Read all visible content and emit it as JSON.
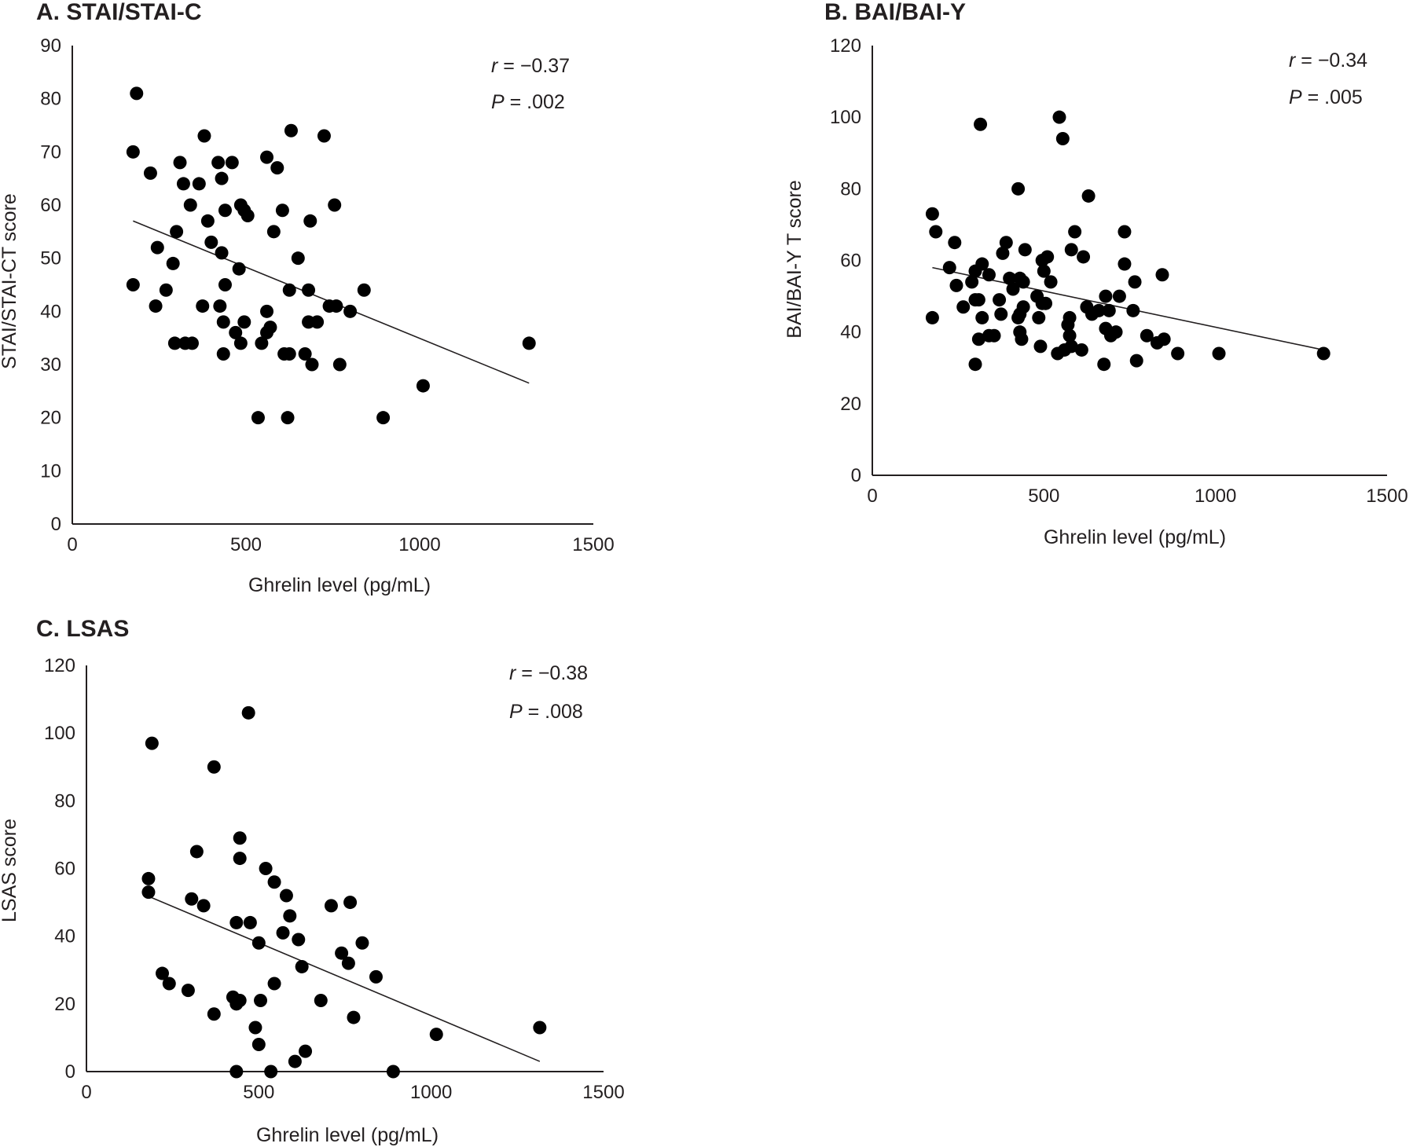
{
  "chart_data": [
    {
      "type": "scatter",
      "title": "A. STAI/STAI-C",
      "xlabel": "Ghrelin level (pg/mL)",
      "ylabel": "STAI/STAI-CT score",
      "xlim": [
        0,
        1500
      ],
      "ylim": [
        0,
        90
      ],
      "xticks": [
        "0",
        "500",
        "1000",
        "1500"
      ],
      "yticks": [
        "0",
        "10",
        "20",
        "30",
        "40",
        "50",
        "60",
        "70",
        "80",
        "90"
      ],
      "stats": {
        "r_symbol": "r",
        "r_value": " = −0.37",
        "p_symbol": "P",
        "p_value": " = .002"
      },
      "trendline": {
        "x": [
          175,
          1315
        ],
        "y": [
          57,
          26.5
        ]
      },
      "points": [
        [
          185,
          81
        ],
        [
          175,
          70
        ],
        [
          225,
          66
        ],
        [
          310,
          68
        ],
        [
          320,
          64
        ],
        [
          340,
          60
        ],
        [
          365,
          64
        ],
        [
          380,
          73
        ],
        [
          390,
          57
        ],
        [
          400,
          53
        ],
        [
          420,
          68
        ],
        [
          430,
          65
        ],
        [
          440,
          59
        ],
        [
          460,
          68
        ],
        [
          485,
          60
        ],
        [
          495,
          59
        ],
        [
          505,
          58
        ],
        [
          560,
          69
        ],
        [
          590,
          67
        ],
        [
          630,
          74
        ],
        [
          725,
          73
        ],
        [
          605,
          59
        ],
        [
          580,
          55
        ],
        [
          685,
          57
        ],
        [
          755,
          60
        ],
        [
          175,
          45
        ],
        [
          245,
          52
        ],
        [
          290,
          49
        ],
        [
          300,
          55
        ],
        [
          270,
          44
        ],
        [
          240,
          41
        ],
        [
          375,
          41
        ],
        [
          430,
          51
        ],
        [
          440,
          45
        ],
        [
          480,
          48
        ],
        [
          425,
          41
        ],
        [
          435,
          38
        ],
        [
          470,
          36
        ],
        [
          495,
          38
        ],
        [
          560,
          40
        ],
        [
          570,
          37
        ],
        [
          560,
          36
        ],
        [
          625,
          44
        ],
        [
          650,
          50
        ],
        [
          680,
          44
        ],
        [
          740,
          41
        ],
        [
          760,
          41
        ],
        [
          800,
          40
        ],
        [
          840,
          44
        ],
        [
          680,
          38
        ],
        [
          705,
          38
        ],
        [
          295,
          34
        ],
        [
          325,
          34
        ],
        [
          345,
          34
        ],
        [
          435,
          32
        ],
        [
          485,
          34
        ],
        [
          545,
          34
        ],
        [
          610,
          32
        ],
        [
          625,
          32
        ],
        [
          670,
          32
        ],
        [
          690,
          30
        ],
        [
          770,
          30
        ],
        [
          535,
          20
        ],
        [
          620,
          20
        ],
        [
          895,
          20
        ],
        [
          1010,
          26
        ],
        [
          1315,
          34
        ]
      ]
    },
    {
      "type": "scatter",
      "title": "B. BAI/BAI-Y",
      "xlabel": "Ghrelin level (pg/mL)",
      "ylabel": "BAI/BAI-Y T score",
      "xlim": [
        0,
        1500
      ],
      "ylim": [
        0,
        120
      ],
      "xticks": [
        "0",
        "500",
        "1000",
        "1500"
      ],
      "yticks": [
        "0",
        "20",
        "40",
        "60",
        "80",
        "100",
        "120"
      ],
      "stats": {
        "r_symbol": "r",
        "r_value": " = −0.34",
        "p_symbol": "P",
        "p_value": " = .005"
      },
      "trendline": {
        "x": [
          175,
          1315
        ],
        "y": [
          58,
          35
        ]
      },
      "points": [
        [
          315,
          98
        ],
        [
          545,
          100
        ],
        [
          555,
          94
        ],
        [
          425,
          80
        ],
        [
          630,
          78
        ],
        [
          175,
          73
        ],
        [
          185,
          68
        ],
        [
          240,
          65
        ],
        [
          590,
          68
        ],
        [
          735,
          68
        ],
        [
          225,
          58
        ],
        [
          245,
          53
        ],
        [
          300,
          57
        ],
        [
          290,
          54
        ],
        [
          320,
          59
        ],
        [
          340,
          56
        ],
        [
          380,
          62
        ],
        [
          390,
          65
        ],
        [
          445,
          63
        ],
        [
          400,
          55
        ],
        [
          430,
          55
        ],
        [
          410,
          52
        ],
        [
          440,
          54
        ],
        [
          480,
          50
        ],
        [
          495,
          60
        ],
        [
          510,
          61
        ],
        [
          500,
          57
        ],
        [
          520,
          54
        ],
        [
          580,
          63
        ],
        [
          615,
          61
        ],
        [
          735,
          59
        ],
        [
          765,
          54
        ],
        [
          845,
          56
        ],
        [
          175,
          44
        ],
        [
          265,
          47
        ],
        [
          300,
          49
        ],
        [
          310,
          49
        ],
        [
          320,
          44
        ],
        [
          370,
          49
        ],
        [
          375,
          45
        ],
        [
          425,
          44
        ],
        [
          440,
          47
        ],
        [
          430,
          45
        ],
        [
          485,
          44
        ],
        [
          495,
          48
        ],
        [
          505,
          48
        ],
        [
          570,
          42
        ],
        [
          575,
          44
        ],
        [
          625,
          47
        ],
        [
          640,
          45
        ],
        [
          660,
          46
        ],
        [
          680,
          50
        ],
        [
          690,
          46
        ],
        [
          720,
          50
        ],
        [
          760,
          46
        ],
        [
          310,
          38
        ],
        [
          340,
          39
        ],
        [
          355,
          39
        ],
        [
          430,
          40
        ],
        [
          435,
          38
        ],
        [
          490,
          36
        ],
        [
          540,
          34
        ],
        [
          560,
          35
        ],
        [
          575,
          39
        ],
        [
          580,
          36
        ],
        [
          610,
          35
        ],
        [
          680,
          41
        ],
        [
          695,
          39
        ],
        [
          710,
          40
        ],
        [
          300,
          31
        ],
        [
          675,
          31
        ],
        [
          770,
          32
        ],
        [
          800,
          39
        ],
        [
          830,
          37
        ],
        [
          850,
          38
        ],
        [
          890,
          34
        ],
        [
          1010,
          34
        ],
        [
          1315,
          34
        ]
      ]
    },
    {
      "type": "scatter",
      "title": "C. LSAS",
      "xlabel": "Ghrelin level (pg/mL)",
      "ylabel": "LSAS score",
      "xlim": [
        0,
        1500
      ],
      "ylim": [
        0,
        120
      ],
      "xticks": [
        "0",
        "500",
        "1000",
        "1500"
      ],
      "yticks": [
        "0",
        "20",
        "40",
        "60",
        "80",
        "100",
        "120"
      ],
      "stats": {
        "r_symbol": "r",
        "r_value": " = −0.38",
        "p_symbol": "P",
        "p_value": " = .008"
      },
      "trendline": {
        "x": [
          175,
          1315
        ],
        "y": [
          52,
          3
        ]
      },
      "points": [
        [
          190,
          97
        ],
        [
          470,
          106
        ],
        [
          370,
          90
        ],
        [
          445,
          69
        ],
        [
          320,
          65
        ],
        [
          445,
          63
        ],
        [
          520,
          60
        ],
        [
          180,
          57
        ],
        [
          545,
          56
        ],
        [
          580,
          52
        ],
        [
          180,
          53
        ],
        [
          305,
          51
        ],
        [
          340,
          49
        ],
        [
          590,
          46
        ],
        [
          710,
          49
        ],
        [
          765,
          50
        ],
        [
          435,
          44
        ],
        [
          475,
          44
        ],
        [
          500,
          38
        ],
        [
          570,
          41
        ],
        [
          615,
          39
        ],
        [
          740,
          35
        ],
        [
          760,
          32
        ],
        [
          800,
          38
        ],
        [
          220,
          29
        ],
        [
          240,
          26
        ],
        [
          295,
          24
        ],
        [
          370,
          17
        ],
        [
          425,
          22
        ],
        [
          435,
          20
        ],
        [
          445,
          21
        ],
        [
          490,
          13
        ],
        [
          505,
          21
        ],
        [
          545,
          26
        ],
        [
          625,
          31
        ],
        [
          680,
          21
        ],
        [
          775,
          16
        ],
        [
          840,
          28
        ],
        [
          500,
          8
        ],
        [
          605,
          3
        ],
        [
          635,
          6
        ],
        [
          435,
          0
        ],
        [
          535,
          0
        ],
        [
          890,
          0
        ],
        [
          1015,
          11
        ],
        [
          1315,
          13
        ]
      ]
    }
  ]
}
